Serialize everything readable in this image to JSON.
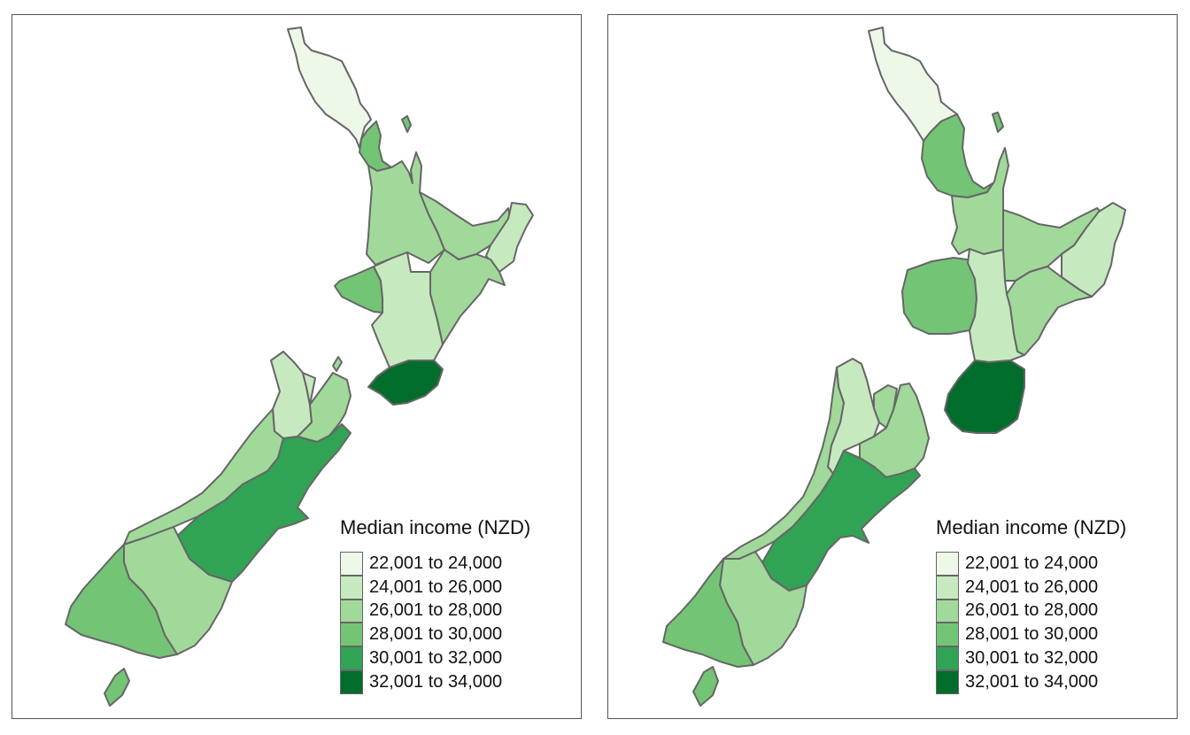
{
  "maps": [
    {
      "legend_title": "Median income (NZD)",
      "regions": [
        {
          "name": "Northland",
          "class": 0
        },
        {
          "name": "Auckland",
          "class": 3
        },
        {
          "name": "Waikato",
          "class": 2
        },
        {
          "name": "Bay of Plenty",
          "class": 2
        },
        {
          "name": "Gisborne",
          "class": 1
        },
        {
          "name": "Hawke's Bay",
          "class": 2
        },
        {
          "name": "Taranaki",
          "class": 3
        },
        {
          "name": "Manawatu-Wanganui",
          "class": 1
        },
        {
          "name": "Wellington",
          "class": 5
        },
        {
          "name": "Tasman",
          "class": 1
        },
        {
          "name": "Nelson",
          "class": 1
        },
        {
          "name": "Marlborough",
          "class": 2
        },
        {
          "name": "West Coast",
          "class": 2
        },
        {
          "name": "Canterbury",
          "class": 4
        },
        {
          "name": "Otago",
          "class": 2
        },
        {
          "name": "Southland",
          "class": 3
        }
      ]
    },
    {
      "legend_title": "Median income (NZD)",
      "regions": [
        {
          "name": "Northland",
          "class": 0
        },
        {
          "name": "Auckland",
          "class": 3
        },
        {
          "name": "Waikato",
          "class": 2
        },
        {
          "name": "Bay of Plenty",
          "class": 2
        },
        {
          "name": "Gisborne",
          "class": 1
        },
        {
          "name": "Hawke's Bay",
          "class": 2
        },
        {
          "name": "Taranaki",
          "class": 3
        },
        {
          "name": "Manawatu-Wanganui",
          "class": 1
        },
        {
          "name": "Wellington",
          "class": 5
        },
        {
          "name": "Tasman",
          "class": 1
        },
        {
          "name": "Nelson",
          "class": 2
        },
        {
          "name": "Marlborough",
          "class": 2
        },
        {
          "name": "West Coast",
          "class": 2
        },
        {
          "name": "Canterbury",
          "class": 4
        },
        {
          "name": "Otago",
          "class": 2
        },
        {
          "name": "Southland",
          "class": 3
        }
      ]
    }
  ],
  "legend": {
    "items": [
      {
        "label": "22,001 to 24,000",
        "color": "#edf8e9"
      },
      {
        "label": "24,001 to 26,000",
        "color": "#c7e9c0"
      },
      {
        "label": "26,001 to 28,000",
        "color": "#a1d99b"
      },
      {
        "label": "28,001 to 30,000",
        "color": "#74c476"
      },
      {
        "label": "30,001 to 32,000",
        "color": "#31a354"
      },
      {
        "label": "32,001 to 34,000",
        "color": "#006d2c"
      }
    ]
  }
}
